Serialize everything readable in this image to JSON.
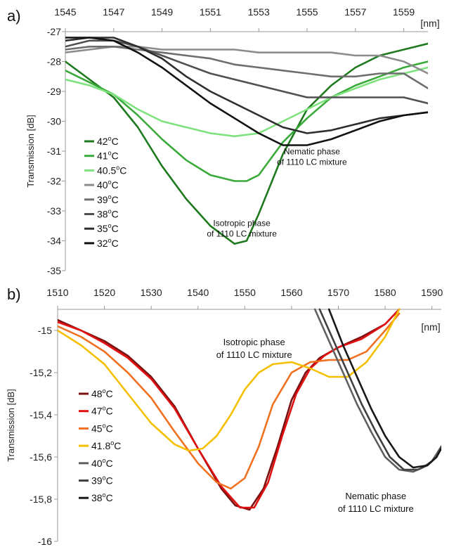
{
  "chart_data": [
    {
      "type": "line",
      "panel": "a)",
      "x_unit": "[nm]",
      "ylabel": "Transmission [dB]",
      "xlim": [
        1545,
        1560
      ],
      "ylim": [
        -35,
        -27
      ],
      "x_ticks": [
        1545,
        1547,
        1549,
        1551,
        1553,
        1555,
        1557,
        1559
      ],
      "y_ticks": [
        -27,
        -28,
        -29,
        -30,
        -31,
        -32,
        -33,
        -34,
        -35
      ],
      "grid": false,
      "legend_position": "left",
      "annotations": [
        {
          "lines": [
            "Nematic phase",
            "of 1110 LC mixture"
          ],
          "x": 1555.2,
          "y": -31.1
        },
        {
          "lines": [
            "Isotropic phase",
            "of 1110 LC mixture"
          ],
          "x": 1552.3,
          "y": -33.5
        }
      ],
      "series": [
        {
          "name": "42",
          "color": "#1f7a1f",
          "x": [
            1545,
            1546,
            1547,
            1548,
            1549,
            1550,
            1551,
            1552,
            1552.5,
            1553,
            1554,
            1555,
            1556,
            1557,
            1558,
            1559,
            1560
          ],
          "y": [
            -28.0,
            -28.6,
            -29.2,
            -30.2,
            -31.5,
            -32.6,
            -33.5,
            -34.1,
            -34.0,
            -33.1,
            -31.1,
            -29.6,
            -28.8,
            -28.2,
            -27.8,
            -27.6,
            -27.4
          ]
        },
        {
          "name": "41",
          "color": "#3aaa3a",
          "x": [
            1545,
            1546,
            1547,
            1548,
            1549,
            1550,
            1551,
            1552,
            1552.5,
            1553,
            1554,
            1555,
            1556,
            1557,
            1558,
            1559,
            1560
          ],
          "y": [
            -28.3,
            -28.7,
            -29.1,
            -29.8,
            -30.6,
            -31.3,
            -31.8,
            -32.0,
            -32.0,
            -31.8,
            -30.7,
            -29.9,
            -29.2,
            -28.8,
            -28.5,
            -28.2,
            -28.0
          ]
        },
        {
          "name": "40.5",
          "color": "#7ee27e",
          "x": [
            1545,
            1546,
            1547,
            1548,
            1549,
            1550,
            1551,
            1552,
            1553,
            1554,
            1555,
            1556,
            1557,
            1558,
            1559,
            1560
          ],
          "y": [
            -28.6,
            -28.8,
            -29.1,
            -29.6,
            -30.0,
            -30.2,
            -30.4,
            -30.5,
            -30.4,
            -30.0,
            -29.6,
            -29.2,
            -28.9,
            -28.6,
            -28.4,
            -28.2
          ]
        },
        {
          "name": "40",
          "color": "#8c8c8c",
          "x": [
            1545,
            1546,
            1547,
            1548,
            1549,
            1550,
            1551,
            1552,
            1553,
            1554,
            1555,
            1556,
            1557,
            1558,
            1559,
            1560
          ],
          "y": [
            -27.7,
            -27.6,
            -27.5,
            -27.5,
            -27.6,
            -27.6,
            -27.6,
            -27.6,
            -27.7,
            -27.7,
            -27.7,
            -27.7,
            -27.8,
            -27.8,
            -28.0,
            -28.4
          ]
        },
        {
          "name": "39",
          "color": "#6e6e6e",
          "x": [
            1545,
            1546,
            1547,
            1548,
            1549,
            1550,
            1551,
            1552,
            1553,
            1554,
            1555,
            1556,
            1557,
            1558,
            1559,
            1560
          ],
          "y": [
            -27.6,
            -27.5,
            -27.5,
            -27.6,
            -27.7,
            -27.8,
            -27.9,
            -28.1,
            -28.2,
            -28.3,
            -28.4,
            -28.5,
            -28.5,
            -28.4,
            -28.4,
            -28.9
          ]
        },
        {
          "name": "38",
          "color": "#505050",
          "x": [
            1545,
            1546,
            1547,
            1548,
            1549,
            1550,
            1551,
            1552,
            1553,
            1554,
            1555,
            1556,
            1557,
            1558,
            1559,
            1560
          ],
          "y": [
            -27.5,
            -27.3,
            -27.3,
            -27.5,
            -27.8,
            -28.1,
            -28.4,
            -28.6,
            -28.8,
            -29.0,
            -29.2,
            -29.2,
            -29.2,
            -29.2,
            -29.2,
            -29.4
          ]
        },
        {
          "name": "35",
          "color": "#2e2e2e",
          "x": [
            1545,
            1546,
            1547,
            1548,
            1549,
            1550,
            1551,
            1552,
            1553,
            1554,
            1555,
            1556,
            1557,
            1558,
            1559,
            1560
          ],
          "y": [
            -27.3,
            -27.2,
            -27.2,
            -27.5,
            -27.9,
            -28.5,
            -29.0,
            -29.4,
            -29.8,
            -30.2,
            -30.4,
            -30.3,
            -30.1,
            -29.9,
            -29.8,
            -29.7
          ]
        },
        {
          "name": "32",
          "color": "#111111",
          "x": [
            1545,
            1546,
            1547,
            1548,
            1549,
            1550,
            1551,
            1552,
            1553,
            1554,
            1555,
            1556,
            1557,
            1558,
            1559,
            1560
          ],
          "y": [
            -27.2,
            -27.2,
            -27.3,
            -27.7,
            -28.2,
            -28.8,
            -29.4,
            -29.9,
            -30.4,
            -30.8,
            -30.8,
            -30.6,
            -30.3,
            -30.0,
            -29.8,
            -29.7
          ]
        }
      ]
    },
    {
      "type": "line",
      "panel": "b)",
      "x_unit": "[nm]",
      "ylabel": "Transmission [dB]",
      "xlim": [
        1510,
        1592
      ],
      "ylim": [
        -16,
        -14.9
      ],
      "x_ticks": [
        1510,
        1520,
        1530,
        1540,
        1550,
        1560,
        1570,
        1580,
        1590
      ],
      "y_ticks": [
        -15,
        -15.2,
        -15.4,
        -15.6,
        -15.8,
        -16
      ],
      "y_tick_labels": [
        "-15",
        "-15,2",
        "-15,4",
        "-15,6",
        "-15,8",
        "-16"
      ],
      "grid": false,
      "legend_position": "left",
      "annotations": [
        {
          "lines": [
            "Isotropic phase",
            "of 1110 LC mixture"
          ],
          "x": 1552,
          "y": -15.07
        },
        {
          "lines": [
            "Nematic phase",
            "of 1110 LC mixture"
          ],
          "x": 1578,
          "y": -15.8
        }
      ],
      "series": [
        {
          "name": "48",
          "color": "#7a1010",
          "x": [
            1510,
            1515,
            1520,
            1525,
            1530,
            1535,
            1540,
            1545,
            1548,
            1551,
            1554,
            1557,
            1560,
            1563,
            1566,
            1570,
            1575,
            1580,
            1583
          ],
          "y": [
            -14.95,
            -15.0,
            -15.05,
            -15.12,
            -15.22,
            -15.36,
            -15.56,
            -15.75,
            -15.83,
            -15.85,
            -15.75,
            -15.55,
            -15.33,
            -15.2,
            -15.13,
            -15.08,
            -15.03,
            -14.97,
            -14.9
          ]
        },
        {
          "name": "47",
          "color": "#e01010",
          "x": [
            1510,
            1515,
            1520,
            1525,
            1530,
            1535,
            1540,
            1545,
            1549,
            1552,
            1555,
            1558,
            1561,
            1564,
            1567,
            1570,
            1575,
            1580,
            1583
          ],
          "y": [
            -14.96,
            -15.0,
            -15.06,
            -15.13,
            -15.23,
            -15.37,
            -15.56,
            -15.74,
            -15.84,
            -15.84,
            -15.72,
            -15.5,
            -15.3,
            -15.18,
            -15.12,
            -15.08,
            -15.04,
            -14.97,
            -14.9
          ]
        },
        {
          "name": "45",
          "color": "#f07020",
          "x": [
            1510,
            1515,
            1520,
            1525,
            1530,
            1535,
            1540,
            1544,
            1547,
            1550,
            1553,
            1556,
            1560,
            1564,
            1568,
            1572,
            1576,
            1580,
            1583
          ],
          "y": [
            -14.98,
            -15.03,
            -15.1,
            -15.2,
            -15.32,
            -15.48,
            -15.63,
            -15.72,
            -15.75,
            -15.7,
            -15.55,
            -15.35,
            -15.2,
            -15.15,
            -15.14,
            -15.14,
            -15.1,
            -15.0,
            -14.92
          ]
        },
        {
          "name": "41.8",
          "color": "#f5c000",
          "x": [
            1510,
            1515,
            1520,
            1525,
            1530,
            1535,
            1538,
            1541,
            1544,
            1547,
            1550,
            1553,
            1556,
            1560,
            1564,
            1568,
            1572,
            1576,
            1580,
            1583
          ],
          "y": [
            -15.0,
            -15.07,
            -15.16,
            -15.3,
            -15.44,
            -15.54,
            -15.57,
            -15.56,
            -15.5,
            -15.4,
            -15.28,
            -15.2,
            -15.16,
            -15.15,
            -15.18,
            -15.22,
            -15.22,
            -15.15,
            -15.03,
            -14.9
          ]
        },
        {
          "name": "40",
          "color": "#606060",
          "x": [
            1565,
            1568,
            1571,
            1574,
            1577,
            1580,
            1583,
            1586,
            1588,
            1590,
            1592
          ],
          "y": [
            -14.9,
            -15.05,
            -15.2,
            -15.35,
            -15.48,
            -15.6,
            -15.66,
            -15.67,
            -15.65,
            -15.62,
            -15.55
          ]
        },
        {
          "name": "39",
          "color": "#404040",
          "x": [
            1566,
            1569,
            1572,
            1575,
            1578,
            1581,
            1584,
            1587,
            1589,
            1591,
            1592
          ],
          "y": [
            -14.9,
            -15.05,
            -15.2,
            -15.35,
            -15.48,
            -15.6,
            -15.66,
            -15.66,
            -15.64,
            -15.6,
            -15.55
          ]
        },
        {
          "name": "38",
          "color": "#181818",
          "x": [
            1568,
            1571,
            1574,
            1577,
            1580,
            1583,
            1586,
            1589,
            1591,
            1592
          ],
          "y": [
            -14.9,
            -15.07,
            -15.22,
            -15.37,
            -15.5,
            -15.6,
            -15.65,
            -15.64,
            -15.6,
            -15.56
          ]
        }
      ]
    }
  ]
}
